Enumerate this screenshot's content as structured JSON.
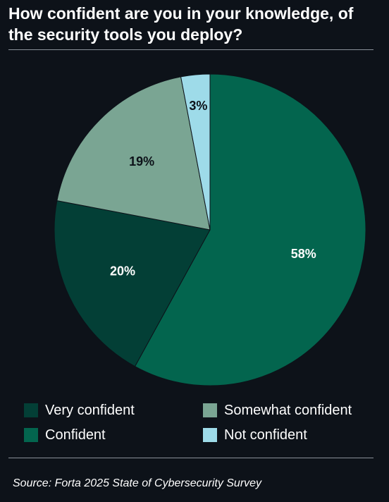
{
  "title": "How confident are you in your knowledge, of the security tools you deploy?",
  "source": "Source: Forta 2025 State of Cybersecurity Survey",
  "colors": {
    "background": "#0d1219",
    "confident": "#03654e",
    "very_confident": "#033f36",
    "somewhat_confident": "#7aa593",
    "not_confident": "#9edbe9"
  },
  "chart_data": {
    "type": "pie",
    "title": "How confident are you in your knowledge, of the security tools you deploy?",
    "slices": [
      {
        "label": "Confident",
        "value": 58,
        "display": "58%",
        "color": "#03654e",
        "label_color": "#ffffff"
      },
      {
        "label": "Very confident",
        "value": 20,
        "display": "20%",
        "color": "#033f36",
        "label_color": "#ffffff"
      },
      {
        "label": "Somewhat confident",
        "value": 19,
        "display": "19%",
        "color": "#7aa593",
        "label_color": "#0d1219"
      },
      {
        "label": "Not confident",
        "value": 3,
        "display": "3%",
        "color": "#9edbe9",
        "label_color": "#0d1219"
      }
    ],
    "legend": {
      "placement": "bottom",
      "items": [
        {
          "label": "Very confident",
          "color": "#033f36"
        },
        {
          "label": "Somewhat confident",
          "color": "#7aa593"
        },
        {
          "label": "Confident",
          "color": "#03654e"
        },
        {
          "label": "Not confident",
          "color": "#9edbe9"
        }
      ]
    }
  }
}
